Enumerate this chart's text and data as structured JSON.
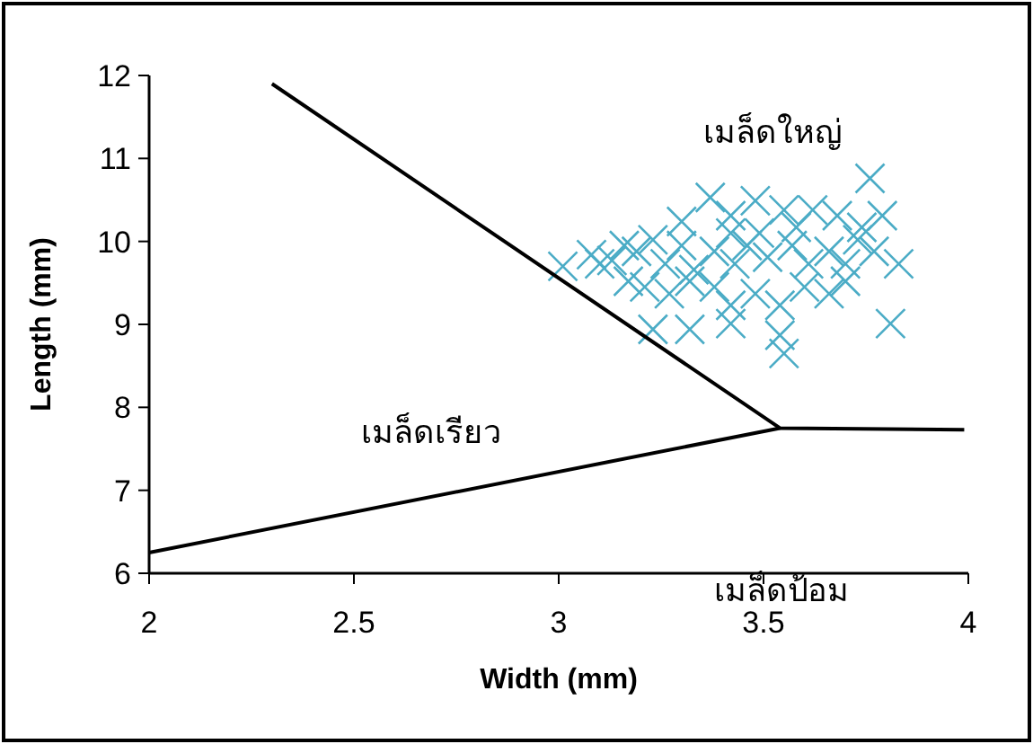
{
  "chart_data": {
    "type": "scatter",
    "xlabel": "Width (mm)",
    "ylabel": "Length (mm)",
    "xlim": [
      2,
      4
    ],
    "ylim": [
      6,
      12
    ],
    "xticks": [
      2,
      2.5,
      3,
      3.5,
      4
    ],
    "yticks": [
      6,
      7,
      8,
      9,
      10,
      11,
      12
    ],
    "marker": "cross",
    "grid": false,
    "annotations": [
      "เมล็ดใหญ่",
      "เมล็ดเรียว",
      "เมล็ดป้อม"
    ],
    "series": [
      {
        "color": "#4bacc6",
        "x": [
          3.76,
          3.79,
          3.37,
          3.48,
          3.42,
          3.55,
          3.62,
          3.68,
          3.74,
          3.83,
          3.81,
          3.01,
          3.08,
          3.13,
          3.19,
          3.23,
          3.26,
          3.3,
          3.33,
          3.38,
          3.43,
          3.46,
          3.51,
          3.57,
          3.61,
          3.66,
          3.7,
          3.73,
          3.77,
          3.17,
          3.21,
          3.27,
          3.32,
          3.38,
          3.42,
          3.48,
          3.54,
          3.6,
          3.66,
          3.7,
          3.23,
          3.32,
          3.42,
          3.54,
          3.55,
          3.16,
          3.1,
          3.49,
          3.58,
          3.42,
          3.3
        ],
        "values": [
          10.76,
          10.31,
          10.53,
          10.49,
          10.31,
          10.38,
          10.38,
          10.31,
          10.17,
          9.73,
          9.01,
          9.7,
          9.84,
          9.77,
          9.88,
          10.02,
          9.73,
          9.95,
          9.66,
          9.88,
          9.73,
          9.95,
          9.81,
          9.95,
          9.73,
          9.88,
          9.73,
          10.02,
          9.88,
          9.52,
          9.45,
          9.37,
          9.52,
          9.45,
          9.23,
          9.37,
          9.23,
          9.45,
          9.37,
          9.52,
          8.94,
          8.94,
          9.01,
          8.87,
          8.65,
          9.95,
          9.73,
          10.1,
          10.17,
          10.1,
          10.24
        ]
      },
      {
        "type": "line",
        "color": "#000000",
        "marker": "none",
        "x": [
          2.3,
          3.54,
          3.99
        ],
        "values": [
          11.9,
          7.75,
          7.73
        ]
      },
      {
        "type": "line",
        "color": "#000000",
        "marker": "none",
        "x": [
          2,
          3.54
        ],
        "values": [
          6.25,
          7.75
        ]
      }
    ]
  }
}
